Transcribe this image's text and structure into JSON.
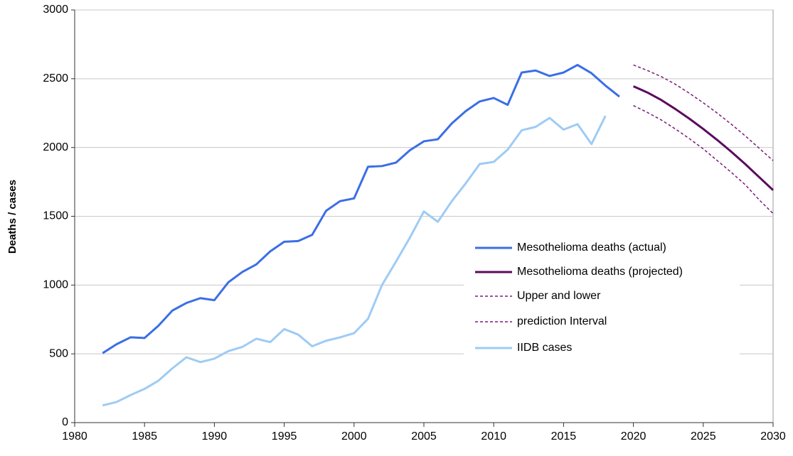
{
  "chart_data": {
    "type": "line",
    "y_label": "Deaths / cases",
    "xlim": [
      1980,
      2030
    ],
    "xticks": [
      1980,
      1985,
      1990,
      1995,
      2000,
      2005,
      2010,
      2015,
      2020,
      2025,
      2030
    ],
    "ylim": [
      0,
      3000
    ],
    "yticks": [
      0,
      500,
      1000,
      1500,
      2000,
      2500,
      3000
    ],
    "grid": true,
    "legend": "right",
    "series": [
      {
        "name": "Mesothelioma deaths (actual)",
        "color": "#3b6ee6",
        "dash": false,
        "x": [
          1982,
          1983,
          1984,
          1985,
          1986,
          1987,
          1988,
          1989,
          1990,
          1991,
          1992,
          1993,
          1994,
          1995,
          1996,
          1997,
          1998,
          1999,
          2000,
          2001,
          2002,
          2003,
          2004,
          2005,
          2006,
          2007,
          2008,
          2009,
          2010,
          2011,
          2012,
          2013,
          2014,
          2015,
          2016,
          2017,
          2018,
          2019
        ],
        "values": [
          505,
          570,
          620,
          615,
          705,
          815,
          870,
          905,
          890,
          1020,
          1095,
          1150,
          1245,
          1315,
          1320,
          1365,
          1540,
          1610,
          1630,
          1860,
          1865,
          1890,
          1980,
          2045,
          2060,
          2175,
          2265,
          2335,
          2360,
          2310,
          2545,
          2560,
          2520,
          2545,
          2600,
          2540,
          2450,
          2370
        ]
      },
      {
        "name": "Mesothelioma deaths (projected)",
        "color": "#5c0a5e",
        "dash": false,
        "x": [
          2020,
          2021,
          2022,
          2023,
          2024,
          2025,
          2026,
          2027,
          2028,
          2029,
          2030
        ],
        "values": [
          2445,
          2400,
          2345,
          2280,
          2210,
          2135,
          2055,
          1970,
          1880,
          1785,
          1690
        ]
      },
      {
        "name": "Upper and lower",
        "color": "#7a1c7a",
        "dash": true,
        "x": [
          2020,
          2021,
          2022,
          2023,
          2024,
          2025,
          2026,
          2027,
          2028,
          2029,
          2030
        ],
        "values": [
          2600,
          2560,
          2515,
          2460,
          2395,
          2325,
          2250,
          2170,
          2085,
          1995,
          1905
        ]
      },
      {
        "name": "prediction Interval",
        "color": "#7a1c7a",
        "dash": true,
        "x": [
          2020,
          2021,
          2022,
          2023,
          2024,
          2025,
          2026,
          2027,
          2028,
          2029,
          2030
        ],
        "values": [
          2305,
          2255,
          2200,
          2135,
          2065,
          1990,
          1905,
          1820,
          1730,
          1620,
          1520
        ]
      },
      {
        "name": "IIDB cases",
        "color": "#9ecbf5",
        "dash": false,
        "x": [
          1982,
          1983,
          1984,
          1985,
          1986,
          1987,
          1988,
          1989,
          1990,
          1991,
          1992,
          1993,
          1994,
          1995,
          1996,
          1997,
          1998,
          1999,
          2000,
          2001,
          2002,
          2003,
          2004,
          2005,
          2006,
          2007,
          2008,
          2009,
          2010,
          2011,
          2012,
          2013,
          2014,
          2015,
          2016,
          2017,
          2018
        ],
        "values": [
          125,
          150,
          200,
          245,
          305,
          395,
          475,
          440,
          465,
          520,
          550,
          610,
          585,
          680,
          640,
          555,
          595,
          620,
          650,
          755,
          1000,
          1170,
          1345,
          1535,
          1460,
          1610,
          1740,
          1880,
          1895,
          1985,
          2125,
          2150,
          2215,
          2130,
          2170,
          2025,
          2230
        ]
      }
    ]
  }
}
